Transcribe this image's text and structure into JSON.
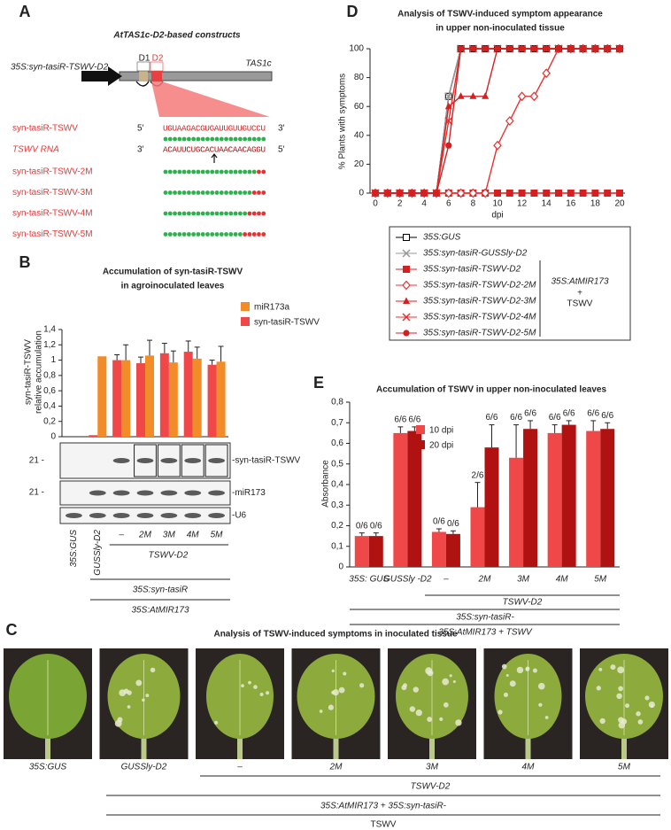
{
  "panel_labels": [
    "A",
    "B",
    "C",
    "D",
    "E"
  ],
  "panel_a": {
    "title": "AtTAS1c-D2-based constructs",
    "construct": "35S:syn-tasiR-TSWV-D2",
    "d1": "D1",
    "d2": "D2",
    "gene": "TAS1c",
    "rows": [
      {
        "name": "syn-tasiR-TSWV",
        "left": "5′",
        "seq": "UGUAAGACGUGAUUGUUGUCCU",
        "right": "3′"
      },
      {
        "name": "TSWV RNA",
        "left": "3′",
        "seq": "ACAUUCUGCACUAACAACAGGU",
        "right": "5′"
      }
    ],
    "mutants": [
      {
        "name": "syn-tasiR-TSWV-2M",
        "mismatches": 2
      },
      {
        "name": "syn-tasiR-TSWV-3M",
        "mismatches": 3
      },
      {
        "name": "syn-tasiR-TSWV-4M",
        "mismatches": 4
      },
      {
        "name": "syn-tasiR-TSWV-5M",
        "mismatches": 5
      }
    ]
  },
  "panel_b_blot": {
    "size_marker": "21 -",
    "probes": [
      "-syn-tasiR-TSWV",
      "-miR173",
      "-U6"
    ],
    "group": "TSWV-D2",
    "bracket1": "35S:syn-tasiR",
    "bracket2": "35S:AtMIR173"
  },
  "panel_c": {
    "title": "Analysis of TSWV-induced symptoms in inoculated tissue",
    "labels": [
      "35S:GUS",
      "GUSSly-D2",
      "–",
      "2M",
      "3M",
      "4M",
      "5M"
    ],
    "group": "TSWV-D2",
    "bracket1": "35S:AtMIR173 + 35S:syn-tasiR-",
    "bracket2": "TSWV"
  },
  "chart_data": [
    {
      "type": "bar",
      "title": [
        "Accumulation of syn-tasiR-TSWV",
        "in agroinoculated leaves"
      ],
      "ylabel": [
        "syn-tasiR-TSWV",
        "relative accumulation"
      ],
      "categories": [
        "35S:GUS",
        "GUSSly-D2",
        "–",
        "2M",
        "3M",
        "4M",
        "5M"
      ],
      "series": [
        {
          "name": "miR173a",
          "color": "#f28c28",
          "values": [
            0,
            1.05,
            1.0,
            1.06,
            0.97,
            1.02,
            0.98
          ],
          "errors": [
            0,
            0,
            0.2,
            0.2,
            0.15,
            0.15,
            0.2
          ]
        },
        {
          "name": "syn-tasiR-TSWV",
          "color": "#f04848",
          "values": [
            0,
            0.02,
            1.0,
            0.96,
            1.09,
            1.11,
            0.94
          ],
          "errors": [
            0,
            0,
            0.07,
            0.08,
            0.13,
            0.14,
            0.06
          ]
        }
      ],
      "ylim": [
        0,
        1.4
      ],
      "yticks": [
        0,
        {
          "value": 0.2,
          "label": "0,2"
        },
        {
          "value": 0.4,
          "label": "0,4"
        },
        {
          "value": 0.6,
          "label": "0,6"
        },
        {
          "value": 0.8,
          "label": "0,8"
        },
        1,
        {
          "value": 1.2,
          "label": "1,2"
        },
        {
          "value": 1.4,
          "label": "1,4"
        }
      ]
    },
    {
      "type": "line",
      "title": [
        "Analysis of TSWV-induced symptom appearance",
        "in upper non-inoculated tissue"
      ],
      "xlabel": "dpi",
      "ylabel": "% Plants with symptoms",
      "x": [
        0,
        1,
        2,
        3,
        4,
        5,
        6,
        7,
        8,
        9,
        10,
        11,
        12,
        13,
        14,
        15,
        16,
        17,
        18,
        19,
        20
      ],
      "series": [
        {
          "name": "35S:GUS",
          "color": "#000000",
          "marker": "square-open",
          "values": [
            0,
            0,
            0,
            0,
            0,
            0,
            67,
            100,
            100,
            100,
            100,
            100,
            100,
            100,
            100,
            100,
            100,
            100,
            100,
            100,
            100
          ]
        },
        {
          "name": "35S:syn-tasiR-GUSSly-D2",
          "color": "#999999",
          "marker": "x",
          "values": [
            0,
            0,
            0,
            0,
            0,
            0,
            67,
            100,
            100,
            100,
            100,
            100,
            100,
            100,
            100,
            100,
            100,
            100,
            100,
            100,
            100
          ]
        },
        {
          "name": "35S:syn-tasiR-TSWV-D2",
          "color": "#d42020",
          "marker": "square",
          "values": [
            0,
            0,
            0,
            0,
            0,
            0,
            0,
            0,
            0,
            0,
            0,
            0,
            0,
            0,
            0,
            0,
            0,
            0,
            0,
            0,
            0
          ]
        },
        {
          "name": "35S:syn-tasiR-TSWV-D2-2M",
          "color": "#e83030",
          "marker": "diamond-open",
          "values": [
            0,
            0,
            0,
            0,
            0,
            0,
            0,
            0,
            0,
            0,
            33,
            50,
            67,
            67,
            83,
            100,
            100,
            100,
            100,
            100,
            100
          ]
        },
        {
          "name": "35S:syn-tasiR-TSWV-D2-3M",
          "color": "#d42020",
          "marker": "triangle",
          "values": [
            0,
            0,
            0,
            0,
            0,
            0,
            60,
            67,
            67,
            67,
            100,
            100,
            100,
            100,
            100,
            100,
            100,
            100,
            100,
            100,
            100
          ]
        },
        {
          "name": "35S:syn-tasiR-TSWV-D2-4M",
          "color": "#e83030",
          "marker": "x",
          "values": [
            0,
            0,
            0,
            0,
            0,
            0,
            50,
            100,
            100,
            100,
            100,
            100,
            100,
            100,
            100,
            100,
            100,
            100,
            100,
            100,
            100
          ]
        },
        {
          "name": "35S:syn-tasiR-TSWV-D2-5M",
          "color": "#d42020",
          "marker": "circle",
          "values": [
            0,
            0,
            0,
            0,
            0,
            0,
            33,
            100,
            100,
            100,
            100,
            100,
            100,
            100,
            100,
            100,
            100,
            100,
            100,
            100,
            100
          ]
        }
      ],
      "legend_note": [
        "35S:AtMIR173",
        "+",
        "TSWV"
      ],
      "xlim": [
        0,
        20
      ],
      "xticks": [
        0,
        2,
        4,
        6,
        8,
        10,
        12,
        14,
        16,
        18,
        20
      ],
      "ylim": [
        0,
        100
      ],
      "yticks": [
        0,
        20,
        40,
        60,
        80,
        100
      ]
    },
    {
      "type": "bar",
      "title": "Accumulation of TSWV in upper non-inoculated leaves",
      "ylabel": "Absorbance",
      "categories": [
        "35S: GUS",
        "GUSSly -D2",
        "–",
        "2M",
        "3M",
        "4M",
        "5M"
      ],
      "series": [
        {
          "name": "10 dpi",
          "color": "#f04848",
          "values": [
            0.15,
            0.65,
            0.17,
            0.29,
            0.53,
            0.65,
            0.66
          ],
          "errors": [
            0.015,
            0.03,
            0.015,
            0.12,
            0.16,
            0.04,
            0.05
          ],
          "fractions": [
            "0/6",
            "6/6",
            "0/6",
            "2/6",
            "6/6",
            "6/6",
            "6/6"
          ]
        },
        {
          "name": "20 dpi",
          "color": "#b01212",
          "values": [
            0.15,
            0.66,
            0.16,
            0.58,
            0.67,
            0.69,
            0.67
          ],
          "errors": [
            0.015,
            0.02,
            0.015,
            0.11,
            0.04,
            0.02,
            0.03
          ],
          "fractions": [
            "0/6",
            "6/6",
            "0/6",
            "6/6",
            "6/6",
            "6/6",
            "6/6"
          ]
        }
      ],
      "group": "TSWV-D2",
      "bracket1": "35S:syn-tasiR-",
      "bracket2": "35S:AtMIR173 + TSWV",
      "ylim": [
        0,
        0.8
      ],
      "yticks": [
        0,
        {
          "value": 0.1,
          "label": "0,1"
        },
        {
          "value": 0.2,
          "label": "0,2"
        },
        {
          "value": 0.3,
          "label": "0,3"
        },
        {
          "value": 0.4,
          "label": "0,4"
        },
        {
          "value": 0.5,
          "label": "0,5"
        },
        {
          "value": 0.6,
          "label": "0,6"
        },
        {
          "value": 0.7,
          "label": "0,7"
        },
        {
          "value": 0.8,
          "label": "0,8"
        }
      ]
    }
  ]
}
